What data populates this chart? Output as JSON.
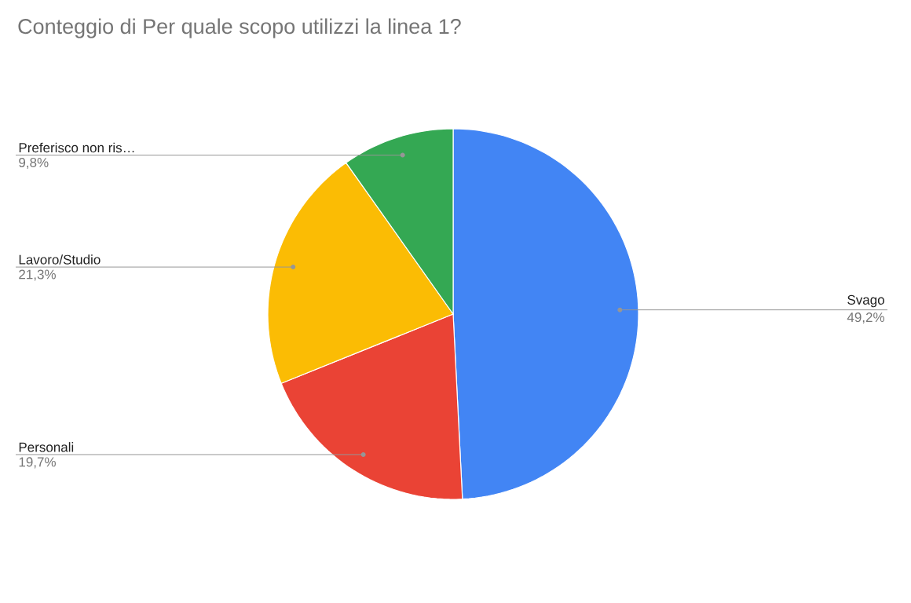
{
  "chart_data": {
    "type": "pie",
    "title": "Conteggio di Per quale scopo utilizzi la linea 1?",
    "categories": [
      "Svago",
      "Personali",
      "Lavoro/Studio",
      "Preferisco non ris…"
    ],
    "values": [
      49.2,
      19.7,
      21.3,
      9.8
    ],
    "value_labels": [
      "49,2%",
      "19,7%",
      "21,3%",
      "9,8%"
    ],
    "colors": [
      "#4285f4",
      "#ea4335",
      "#fbbc04",
      "#34a853"
    ]
  }
}
